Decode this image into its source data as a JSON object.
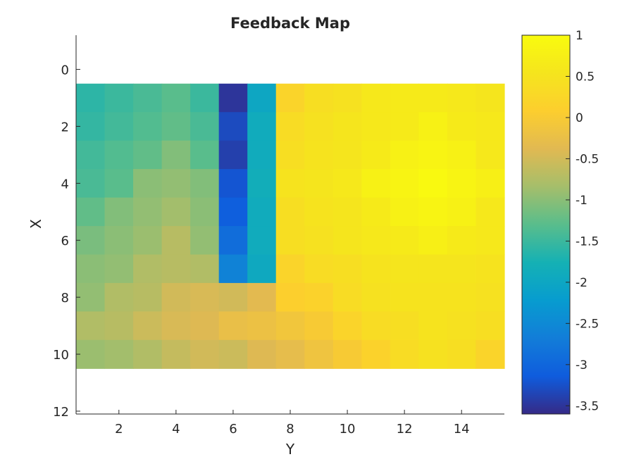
{
  "chart_data": {
    "type": "heatmap",
    "title": "Feedback Map",
    "xlabel": "Y",
    "ylabel": "X",
    "x_ticks": [
      2,
      4,
      6,
      8,
      10,
      12,
      14
    ],
    "y_ticks": [
      0,
      2,
      4,
      6,
      8,
      10,
      12
    ],
    "xlim": [
      0.5,
      15.5
    ],
    "ylim": [
      -1.2,
      12.1
    ],
    "y_reversed": true,
    "colormap": "parula",
    "colorbar": {
      "range": [
        -3.6,
        1.0
      ],
      "ticks": [
        1,
        0.5,
        0,
        -0.5,
        -1,
        -1.5,
        -2,
        -2.5,
        -3,
        -3.5
      ]
    },
    "columns": [
      1,
      2,
      3,
      4,
      5,
      6,
      7,
      8,
      9,
      10,
      11,
      12,
      13,
      14,
      15
    ],
    "rows": [
      1,
      2,
      3,
      4,
      5,
      6,
      7,
      8,
      9,
      10
    ],
    "values": [
      [
        -1.6,
        -1.5,
        -1.4,
        -1.3,
        -1.5,
        -3.5,
        -2.0,
        0.2,
        0.4,
        0.45,
        0.6,
        0.65,
        0.65,
        0.6,
        0.55
      ],
      [
        -1.55,
        -1.45,
        -1.35,
        -1.25,
        -1.4,
        -3.3,
        -1.9,
        0.35,
        0.45,
        0.55,
        0.6,
        0.65,
        0.8,
        0.65,
        0.6
      ],
      [
        -1.45,
        -1.35,
        -1.25,
        -1.05,
        -1.3,
        -3.4,
        -1.9,
        0.4,
        0.5,
        0.55,
        0.65,
        0.8,
        0.85,
        0.8,
        0.6
      ],
      [
        -1.4,
        -1.3,
        -1.0,
        -0.95,
        -1.05,
        -3.2,
        -1.85,
        0.5,
        0.55,
        0.6,
        0.8,
        0.85,
        0.95,
        0.85,
        0.75
      ],
      [
        -1.25,
        -1.05,
        -0.95,
        -0.85,
        -1.0,
        -3.1,
        -1.9,
        0.4,
        0.5,
        0.55,
        0.65,
        0.8,
        0.85,
        0.8,
        0.6
      ],
      [
        -1.1,
        -1.0,
        -0.9,
        -0.7,
        -0.95,
        -2.9,
        -1.9,
        0.4,
        0.45,
        0.55,
        0.6,
        0.65,
        0.75,
        0.65,
        0.6
      ],
      [
        -1.0,
        -0.95,
        -0.75,
        -0.7,
        -0.75,
        -2.6,
        -1.95,
        0.2,
        0.35,
        0.4,
        0.5,
        0.55,
        0.55,
        0.55,
        0.5
      ],
      [
        -0.95,
        -0.75,
        -0.7,
        -0.5,
        -0.45,
        -0.5,
        -0.35,
        0.1,
        0.15,
        0.35,
        0.45,
        0.5,
        0.5,
        0.5,
        0.45
      ],
      [
        -0.75,
        -0.7,
        -0.55,
        -0.45,
        -0.4,
        -0.25,
        -0.2,
        -0.1,
        0.0,
        0.2,
        0.35,
        0.4,
        0.5,
        0.45,
        0.4
      ],
      [
        -0.9,
        -0.85,
        -0.75,
        -0.6,
        -0.5,
        -0.55,
        -0.4,
        -0.3,
        -0.15,
        0.0,
        0.15,
        0.35,
        0.45,
        0.4,
        0.2
      ]
    ]
  }
}
